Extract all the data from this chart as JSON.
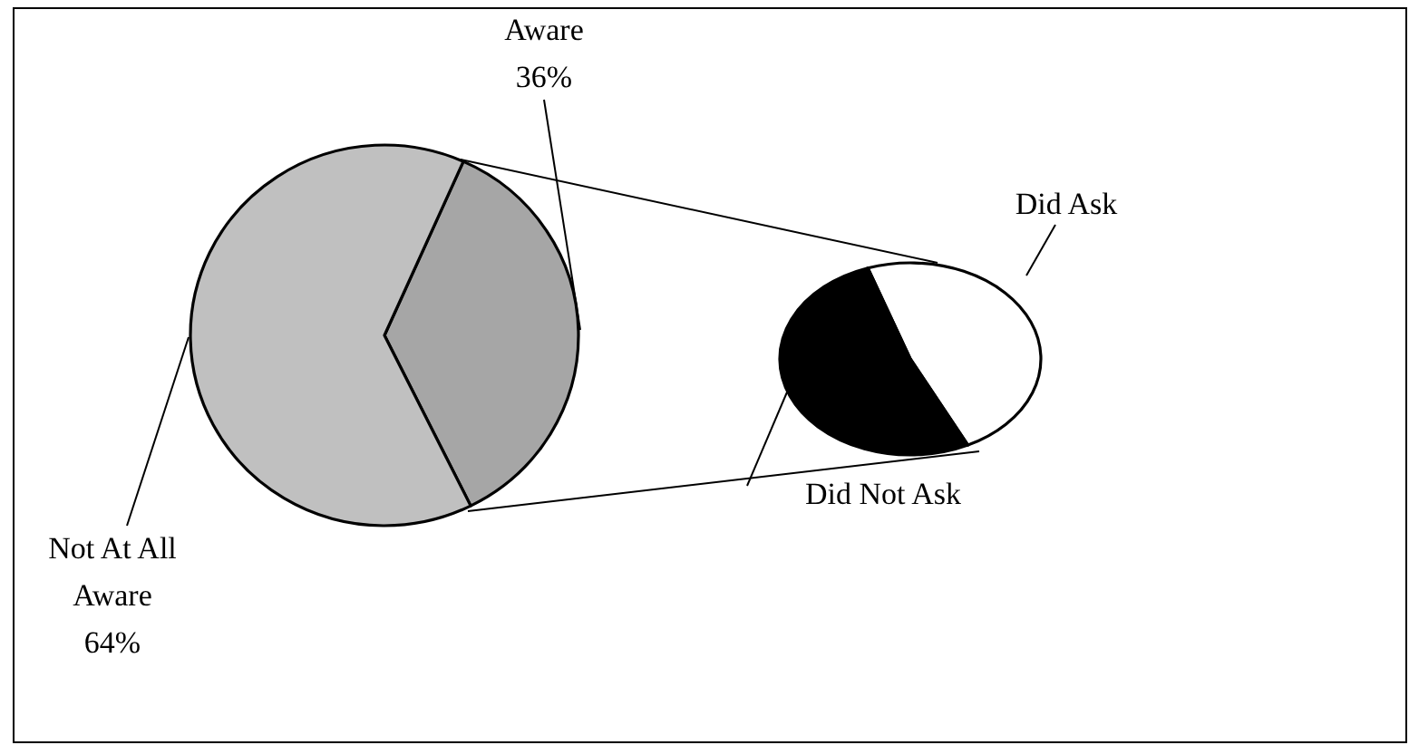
{
  "chart_data": [
    {
      "type": "pie",
      "categories": [
        "Aware",
        "Not At All Aware"
      ],
      "values": [
        36,
        64
      ],
      "colors": [
        "#a6a6a6",
        "#c0c0c0"
      ],
      "value_labels": [
        "36%",
        "64%"
      ]
    },
    {
      "type": "pie",
      "categories": [
        "Did Ask",
        "Did Not Ask"
      ],
      "values": [
        48,
        52
      ],
      "colors": [
        "#ffffff",
        "#000000"
      ]
    }
  ]
}
